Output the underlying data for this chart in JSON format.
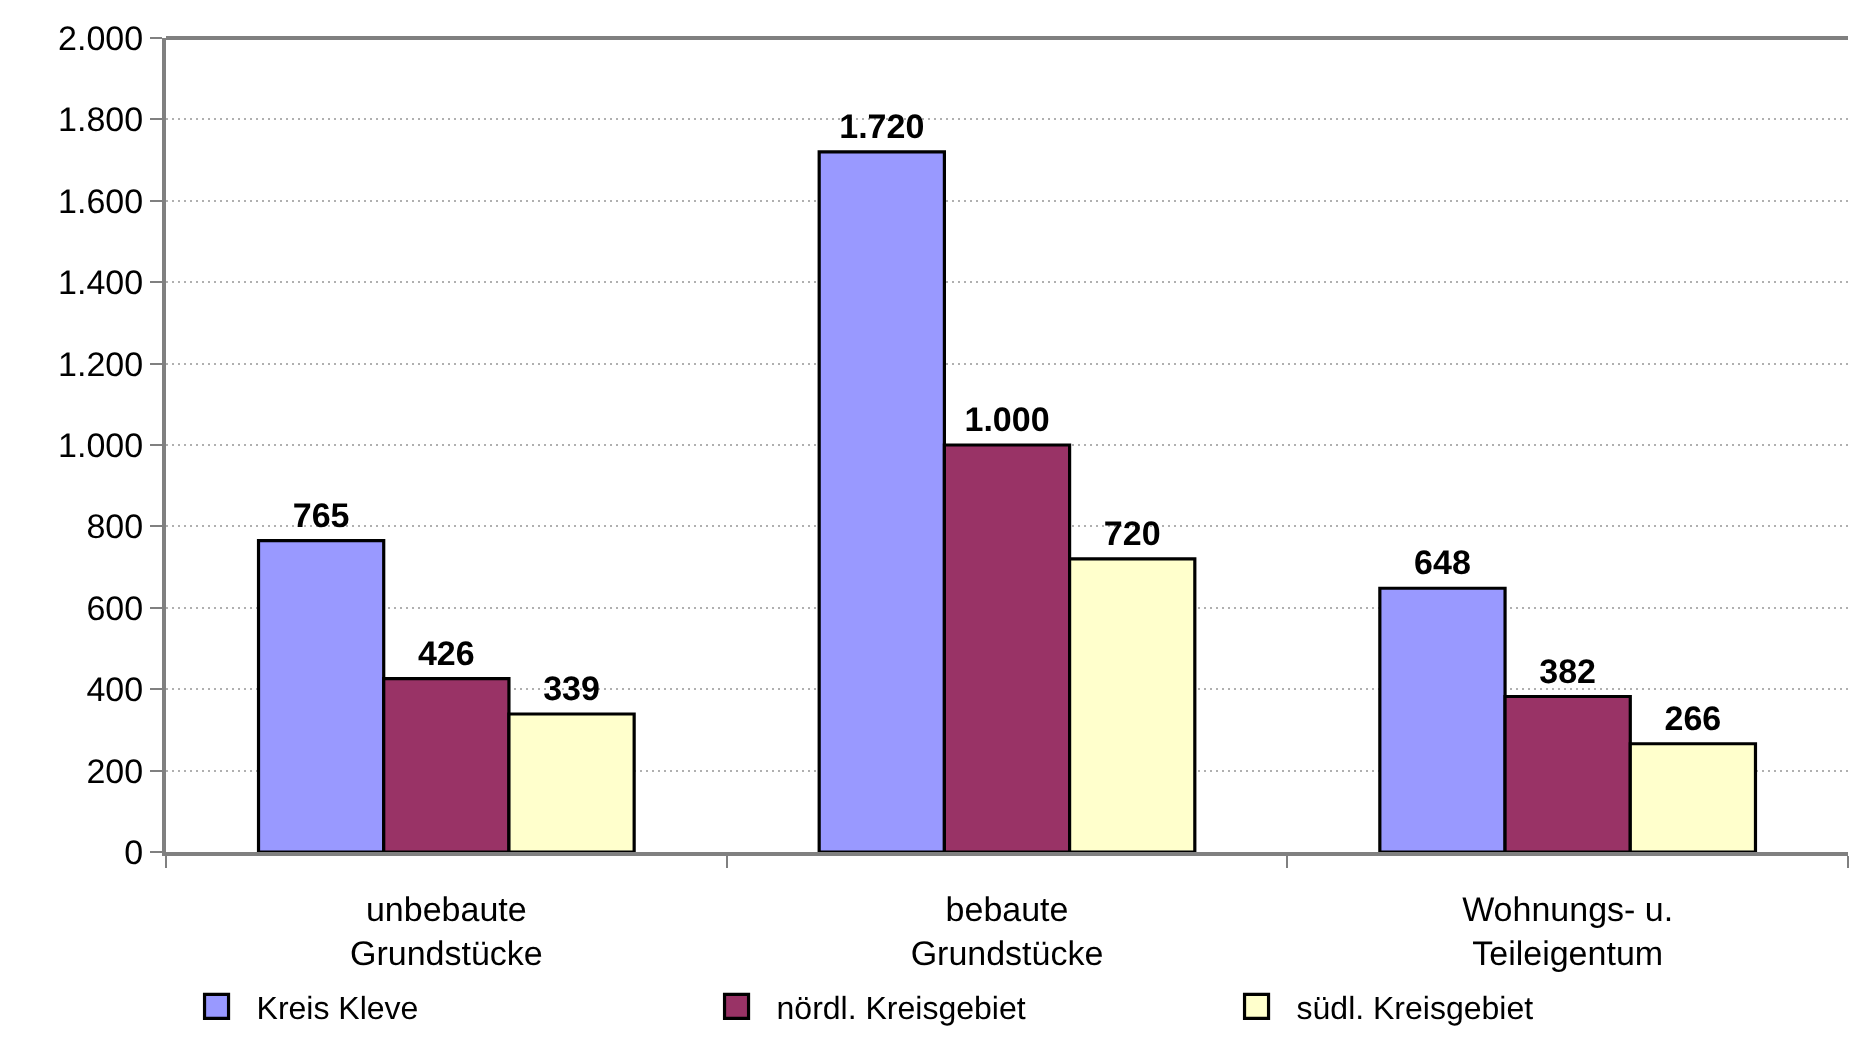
{
  "chart_data": {
    "type": "bar",
    "categories": [
      "unbebaute\nGrundstücke",
      "bebaute\nGrundstücke",
      "Wohnungs- u.\nTeileigentum"
    ],
    "series": [
      {
        "name": "Kreis Kleve",
        "color": "#9999ff",
        "values": [
          765,
          1720,
          648
        ],
        "value_labels": [
          "765",
          "1.720",
          "648"
        ]
      },
      {
        "name": "nördl. Kreisgebiet",
        "color": "#993366",
        "values": [
          426,
          1000,
          382
        ],
        "value_labels": [
          "426",
          "1.000",
          "382"
        ]
      },
      {
        "name": "südl. Kreisgebiet",
        "color": "#ffffcc",
        "values": [
          339,
          720,
          266
        ],
        "value_labels": [
          "339",
          "720",
          "266"
        ]
      }
    ],
    "ylim": [
      0,
      2000
    ],
    "yticks": [
      {
        "value": 0,
        "label": "0"
      },
      {
        "value": 200,
        "label": "200"
      },
      {
        "value": 400,
        "label": "400"
      },
      {
        "value": 600,
        "label": "600"
      },
      {
        "value": 800,
        "label": "800"
      },
      {
        "value": 1000,
        "label": "1.000"
      },
      {
        "value": 1200,
        "label": "1.200"
      },
      {
        "value": 1400,
        "label": "1.400"
      },
      {
        "value": 1600,
        "label": "1.600"
      },
      {
        "value": 1800,
        "label": "1.800"
      },
      {
        "value": 2000,
        "label": "2.000"
      }
    ],
    "grid": "y",
    "legend": "bottom"
  }
}
